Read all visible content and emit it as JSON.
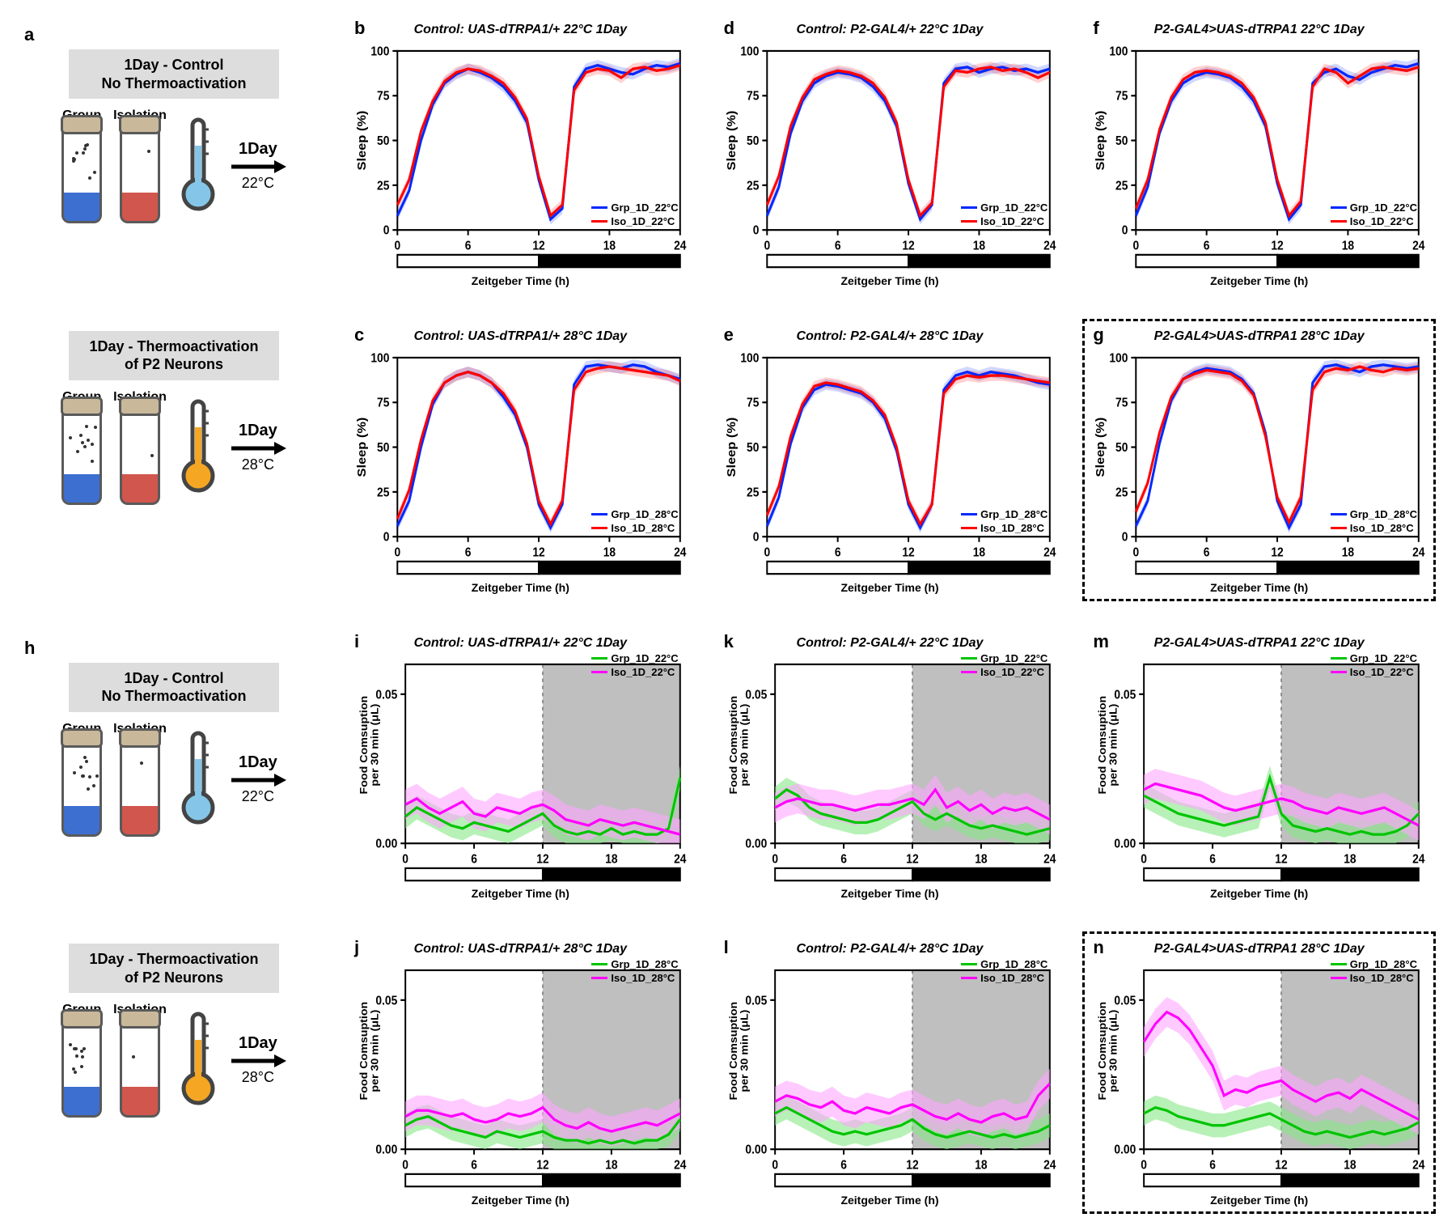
{
  "global": {
    "x_label": "Zeitgeber Time (h)",
    "y_label_sleep": "Sleep (%)",
    "y_label_food": "Food Comsuption\nper 30 min (μL)",
    "xlim": [
      0,
      24
    ],
    "xtick_step": 6,
    "sleep_ylim": [
      0,
      100
    ],
    "sleep_ytick_step": 25,
    "food_ylim": [
      0,
      0.06
    ],
    "food_yticks": [
      0.0,
      0.05
    ],
    "colors": {
      "grp_sleep": "#0028ff",
      "iso_sleep": "#ff0000",
      "grp_food": "#00c400",
      "iso_food": "#ff00ff",
      "grp_food_band": "#87e887",
      "iso_food_band": "#ffa6ff",
      "axis": "#000000",
      "night_fill_sleep": "#000000",
      "day_fill": "#ffffff",
      "food_night_bg": "#bfbfbf",
      "food_night_border": "#777777"
    },
    "line_width": 3,
    "band_opacity": 0.35
  },
  "schematics": {
    "a": {
      "title": "1Day - Control\nNo Thermoactivation",
      "grp_label": "Group",
      "iso_label": "Isolation",
      "arrow_label": "1Day",
      "temp_label": "22°C",
      "therm_color": "#85c6e8",
      "grp_food": "#3d6fd1",
      "iso_food": "#d1564d"
    },
    "a2": {
      "title": "1Day - Thermoactivation\nof P2 Neurons",
      "grp_label": "Group",
      "iso_label": "Isolation",
      "arrow_label": "1Day",
      "temp_label": "28°C",
      "therm_color": "#f5a623",
      "grp_food": "#3d6fd1",
      "iso_food": "#d1564d"
    },
    "h": {
      "title": "1Day - Control\nNo Thermoactivation",
      "grp_label": "Group",
      "iso_label": "Isolation",
      "arrow_label": "1Day",
      "temp_label": "22°C",
      "therm_color": "#85c6e8",
      "grp_food": "#3d6fd1",
      "iso_food": "#d1564d"
    },
    "h2": {
      "title": "1Day - Thermoactivation\nof P2 Neurons",
      "grp_label": "Group",
      "iso_label": "Isolation",
      "arrow_label": "1Day",
      "temp_label": "28°C",
      "therm_color": "#f5a623",
      "grp_food": "#3d6fd1",
      "iso_food": "#d1564d"
    }
  },
  "sleep_panels": {
    "b": {
      "title": "Control: UAS-dTRPA1/+ 22°C 1Day",
      "legend": [
        "Grp_1D_22°C",
        "Iso_1D_22°C"
      ],
      "legend_pos": "br",
      "x": [
        0,
        1,
        2,
        3,
        4,
        5,
        6,
        7,
        8,
        9,
        10,
        11,
        12,
        13,
        14,
        15,
        16,
        17,
        18,
        19,
        20,
        21,
        22,
        23,
        24
      ],
      "grp": [
        8,
        22,
        50,
        70,
        82,
        87,
        90,
        88,
        85,
        80,
        72,
        60,
        28,
        6,
        12,
        80,
        90,
        92,
        90,
        88,
        87,
        90,
        92,
        91,
        93
      ],
      "iso": [
        14,
        28,
        55,
        72,
        83,
        88,
        90,
        89,
        86,
        82,
        74,
        62,
        30,
        8,
        14,
        78,
        88,
        90,
        89,
        85,
        90,
        91,
        89,
        90,
        92
      ]
    },
    "c": {
      "title": "Control: UAS-dTRPA1/+ 28°C 1Day",
      "legend": [
        "Grp_1D_28°C",
        "Iso_1D_28°C"
      ],
      "legend_pos": "br",
      "x": [
        0,
        1,
        2,
        3,
        4,
        5,
        6,
        7,
        8,
        9,
        10,
        11,
        12,
        13,
        14,
        15,
        16,
        17,
        18,
        19,
        20,
        21,
        22,
        23,
        24
      ],
      "grp": [
        6,
        20,
        50,
        74,
        86,
        90,
        92,
        90,
        86,
        78,
        68,
        50,
        18,
        5,
        18,
        85,
        95,
        96,
        95,
        94,
        96,
        95,
        92,
        90,
        88
      ],
      "iso": [
        10,
        26,
        54,
        76,
        86,
        90,
        92,
        90,
        86,
        80,
        70,
        52,
        20,
        7,
        20,
        82,
        92,
        94,
        95,
        94,
        93,
        92,
        91,
        90,
        87
      ]
    },
    "d": {
      "title": "Control: P2-GAL4/+ 22°C 1Day",
      "legend": [
        "Grp_1D_22°C",
        "Iso_1D_22°C"
      ],
      "legend_pos": "br",
      "x": [
        0,
        1,
        2,
        3,
        4,
        5,
        6,
        7,
        8,
        9,
        10,
        11,
        12,
        13,
        14,
        15,
        16,
        17,
        18,
        19,
        20,
        21,
        22,
        23,
        24
      ],
      "grp": [
        8,
        24,
        54,
        72,
        82,
        86,
        88,
        87,
        85,
        80,
        72,
        58,
        26,
        6,
        14,
        82,
        90,
        91,
        88,
        90,
        91,
        89,
        90,
        88,
        90
      ],
      "iso": [
        14,
        30,
        58,
        74,
        84,
        87,
        89,
        88,
        86,
        82,
        74,
        60,
        28,
        8,
        15,
        80,
        89,
        88,
        90,
        91,
        89,
        90,
        88,
        85,
        88
      ]
    },
    "e": {
      "title": "Control: P2-GAL4/+ 28°C 1Day",
      "legend": [
        "Grp_1D_28°C",
        "Iso_1D_28°C"
      ],
      "legend_pos": "br",
      "x": [
        0,
        1,
        2,
        3,
        4,
        5,
        6,
        7,
        8,
        9,
        10,
        11,
        12,
        13,
        14,
        15,
        16,
        17,
        18,
        19,
        20,
        21,
        22,
        23,
        24
      ],
      "grp": [
        6,
        22,
        52,
        72,
        82,
        85,
        84,
        82,
        80,
        75,
        66,
        48,
        18,
        5,
        18,
        82,
        90,
        92,
        90,
        92,
        91,
        90,
        88,
        86,
        85
      ],
      "iso": [
        12,
        28,
        56,
        74,
        84,
        86,
        85,
        83,
        81,
        76,
        68,
        50,
        20,
        7,
        18,
        80,
        88,
        90,
        89,
        90,
        90,
        89,
        88,
        87,
        86
      ]
    },
    "f": {
      "title": "P2-GAL4>UAS-dTRPA1 22°C 1Day",
      "legend": [
        "Grp_1D_22°C",
        "Iso_1D_22°C"
      ],
      "legend_pos": "br",
      "x": [
        0,
        1,
        2,
        3,
        4,
        5,
        6,
        7,
        8,
        9,
        10,
        11,
        12,
        13,
        14,
        15,
        16,
        17,
        18,
        19,
        20,
        21,
        22,
        23,
        24
      ],
      "grp": [
        8,
        24,
        54,
        72,
        82,
        86,
        88,
        87,
        85,
        80,
        72,
        58,
        26,
        6,
        14,
        82,
        88,
        90,
        86,
        84,
        88,
        90,
        92,
        91,
        93
      ],
      "iso": [
        12,
        28,
        56,
        74,
        84,
        88,
        89,
        88,
        86,
        82,
        74,
        60,
        28,
        8,
        16,
        80,
        90,
        88,
        82,
        86,
        90,
        91,
        90,
        89,
        91
      ]
    },
    "g": {
      "title": "P2-GAL4>UAS-dTRPA1 28°C 1Day",
      "legend": [
        "Grp_1D_28°C",
        "Iso_1D_28°C"
      ],
      "legend_pos": "br",
      "boxed": true,
      "x": [
        0,
        1,
        2,
        3,
        4,
        5,
        6,
        7,
        8,
        9,
        10,
        11,
        12,
        13,
        14,
        15,
        16,
        17,
        18,
        19,
        20,
        21,
        22,
        23,
        24
      ],
      "grp": [
        6,
        20,
        52,
        76,
        88,
        92,
        94,
        93,
        92,
        88,
        80,
        58,
        20,
        5,
        18,
        86,
        95,
        96,
        94,
        92,
        95,
        96,
        95,
        94,
        95
      ],
      "iso": [
        14,
        30,
        58,
        78,
        88,
        91,
        93,
        92,
        91,
        87,
        79,
        56,
        22,
        8,
        22,
        82,
        92,
        94,
        93,
        95,
        93,
        92,
        94,
        93,
        94
      ]
    }
  },
  "food_panels": {
    "i": {
      "title": "Control: UAS-dTRPA1/+ 22°C 1Day",
      "legend": [
        "Grp_1D_22°C",
        "Iso_1D_22°C"
      ],
      "legend_pos": "tr",
      "x": [
        0,
        1,
        2,
        3,
        4,
        5,
        6,
        7,
        8,
        9,
        10,
        11,
        12,
        13,
        14,
        15,
        16,
        17,
        18,
        19,
        20,
        21,
        22,
        23,
        24
      ],
      "grp": [
        0.009,
        0.012,
        0.01,
        0.008,
        0.006,
        0.005,
        0.007,
        0.006,
        0.005,
        0.004,
        0.006,
        0.008,
        0.01,
        0.006,
        0.004,
        0.003,
        0.004,
        0.003,
        0.005,
        0.003,
        0.004,
        0.003,
        0.003,
        0.005,
        0.022
      ],
      "iso": [
        0.013,
        0.015,
        0.012,
        0.01,
        0.012,
        0.014,
        0.01,
        0.009,
        0.012,
        0.011,
        0.01,
        0.012,
        0.013,
        0.011,
        0.008,
        0.007,
        0.006,
        0.008,
        0.007,
        0.006,
        0.007,
        0.006,
        0.005,
        0.004,
        0.003
      ]
    },
    "j": {
      "title": "Control: UAS-dTRPA1/+ 28°C 1Day",
      "legend": [
        "Grp_1D_28°C",
        "Iso_1D_28°C"
      ],
      "legend_pos": "tr",
      "x": [
        0,
        1,
        2,
        3,
        4,
        5,
        6,
        7,
        8,
        9,
        10,
        11,
        12,
        13,
        14,
        15,
        16,
        17,
        18,
        19,
        20,
        21,
        22,
        23,
        24
      ],
      "grp": [
        0.008,
        0.01,
        0.011,
        0.009,
        0.007,
        0.006,
        0.005,
        0.004,
        0.006,
        0.005,
        0.004,
        0.005,
        0.006,
        0.004,
        0.003,
        0.003,
        0.002,
        0.003,
        0.002,
        0.003,
        0.002,
        0.003,
        0.003,
        0.005,
        0.01
      ],
      "iso": [
        0.011,
        0.013,
        0.013,
        0.012,
        0.011,
        0.012,
        0.01,
        0.009,
        0.01,
        0.012,
        0.011,
        0.012,
        0.014,
        0.01,
        0.008,
        0.007,
        0.009,
        0.007,
        0.006,
        0.007,
        0.008,
        0.009,
        0.008,
        0.01,
        0.012
      ]
    },
    "k": {
      "title": "Control: P2-GAL4/+ 22°C 1Day",
      "legend": [
        "Grp_1D_22°C",
        "Iso_1D_22°C"
      ],
      "legend_pos": "tr",
      "x": [
        0,
        1,
        2,
        3,
        4,
        5,
        6,
        7,
        8,
        9,
        10,
        11,
        12,
        13,
        14,
        15,
        16,
        17,
        18,
        19,
        20,
        21,
        22,
        23,
        24
      ],
      "grp": [
        0.015,
        0.018,
        0.016,
        0.012,
        0.01,
        0.009,
        0.008,
        0.007,
        0.007,
        0.008,
        0.01,
        0.012,
        0.014,
        0.01,
        0.008,
        0.01,
        0.008,
        0.006,
        0.005,
        0.006,
        0.005,
        0.004,
        0.003,
        0.004,
        0.005
      ],
      "iso": [
        0.012,
        0.014,
        0.015,
        0.014,
        0.013,
        0.013,
        0.012,
        0.011,
        0.012,
        0.013,
        0.013,
        0.014,
        0.015,
        0.013,
        0.018,
        0.012,
        0.014,
        0.011,
        0.013,
        0.01,
        0.012,
        0.011,
        0.012,
        0.01,
        0.008
      ]
    },
    "l": {
      "title": "Control: P2-GAL4/+ 28°C 1Day",
      "legend": [
        "Grp_1D_28°C",
        "Iso_1D_28°C"
      ],
      "legend_pos": "tr",
      "x": [
        0,
        1,
        2,
        3,
        4,
        5,
        6,
        7,
        8,
        9,
        10,
        11,
        12,
        13,
        14,
        15,
        16,
        17,
        18,
        19,
        20,
        21,
        22,
        23,
        24
      ],
      "grp": [
        0.012,
        0.014,
        0.012,
        0.01,
        0.008,
        0.006,
        0.005,
        0.006,
        0.005,
        0.006,
        0.007,
        0.008,
        0.01,
        0.007,
        0.005,
        0.004,
        0.005,
        0.006,
        0.005,
        0.004,
        0.005,
        0.004,
        0.005,
        0.006,
        0.008
      ],
      "iso": [
        0.016,
        0.018,
        0.017,
        0.015,
        0.014,
        0.016,
        0.013,
        0.012,
        0.014,
        0.013,
        0.012,
        0.014,
        0.015,
        0.013,
        0.011,
        0.01,
        0.012,
        0.01,
        0.009,
        0.011,
        0.012,
        0.01,
        0.011,
        0.018,
        0.022
      ]
    },
    "m": {
      "title": "P2-GAL4>UAS-dTRPA1 22°C 1Day",
      "legend": [
        "Grp_1D_22°C",
        "Iso_1D_22°C"
      ],
      "legend_pos": "tr",
      "x": [
        0,
        1,
        2,
        3,
        4,
        5,
        6,
        7,
        8,
        9,
        10,
        11,
        12,
        13,
        14,
        15,
        16,
        17,
        18,
        19,
        20,
        21,
        22,
        23,
        24
      ],
      "grp": [
        0.016,
        0.014,
        0.012,
        0.01,
        0.009,
        0.008,
        0.007,
        0.006,
        0.007,
        0.008,
        0.009,
        0.022,
        0.01,
        0.006,
        0.005,
        0.004,
        0.005,
        0.004,
        0.003,
        0.004,
        0.003,
        0.003,
        0.004,
        0.006,
        0.01
      ],
      "iso": [
        0.018,
        0.02,
        0.019,
        0.018,
        0.017,
        0.016,
        0.014,
        0.012,
        0.011,
        0.012,
        0.013,
        0.014,
        0.015,
        0.014,
        0.012,
        0.011,
        0.01,
        0.012,
        0.011,
        0.01,
        0.011,
        0.012,
        0.01,
        0.008,
        0.006
      ]
    },
    "n": {
      "title": "P2-GAL4>UAS-dTRPA1 28°C 1Day",
      "legend": [
        "Grp_1D_28°C",
        "Iso_1D_28°C"
      ],
      "legend_pos": "tr",
      "boxed": true,
      "x": [
        0,
        1,
        2,
        3,
        4,
        5,
        6,
        7,
        8,
        9,
        10,
        11,
        12,
        13,
        14,
        15,
        16,
        17,
        18,
        19,
        20,
        21,
        22,
        23,
        24
      ],
      "grp": [
        0.012,
        0.014,
        0.013,
        0.011,
        0.01,
        0.009,
        0.008,
        0.008,
        0.009,
        0.01,
        0.011,
        0.012,
        0.01,
        0.008,
        0.006,
        0.005,
        0.006,
        0.005,
        0.004,
        0.005,
        0.006,
        0.005,
        0.006,
        0.007,
        0.009
      ],
      "iso": [
        0.036,
        0.042,
        0.046,
        0.044,
        0.04,
        0.034,
        0.028,
        0.018,
        0.02,
        0.019,
        0.021,
        0.022,
        0.023,
        0.02,
        0.018,
        0.016,
        0.018,
        0.019,
        0.017,
        0.02,
        0.018,
        0.016,
        0.014,
        0.012,
        0.01
      ]
    }
  }
}
